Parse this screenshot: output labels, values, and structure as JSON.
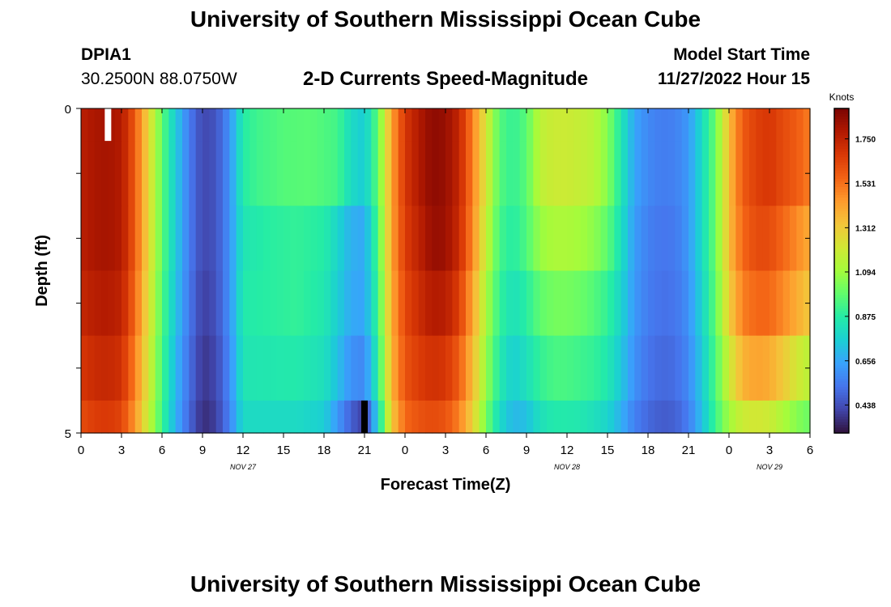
{
  "header": {
    "title": "University of Southern Mississippi Ocean Cube",
    "station": "DPIA1",
    "coords": "30.2500N  88.0750W",
    "subtitle": "2-D Currents Speed-Magnitude",
    "model_start_label": "Model Start Time",
    "model_start_value": "11/27/2022 Hour 15"
  },
  "footer": {
    "title": "University of Southern Mississippi Ocean Cube"
  },
  "chart_data": {
    "type": "heatmap",
    "xlabel": "Forecast Time(Z)",
    "ylabel": "Depth (ft)",
    "x_ticks": [
      "0",
      "3",
      "6",
      "9",
      "12",
      "15",
      "18",
      "21",
      "0",
      "3",
      "6",
      "9",
      "12",
      "15",
      "18",
      "21",
      "0",
      "3",
      "6"
    ],
    "date_labels": [
      {
        "label": "NOV 27",
        "hours": 12
      },
      {
        "label": "NOV 28",
        "hours": 36
      },
      {
        "label": "NOV 29",
        "hours": 51
      }
    ],
    "xlim": [
      0,
      54
    ],
    "y_ticks": [
      "0",
      "5"
    ],
    "ylim": [
      0,
      5
    ],
    "depth_layers": 5,
    "colorbar": {
      "unit": "Knots",
      "range": [
        0.3,
        1.9
      ],
      "ticks": [
        "1.750",
        "1.531",
        "1.312",
        "1.094",
        "0.875",
        "0.656",
        "0.438"
      ],
      "colors": [
        "#30123b",
        "#4145ab",
        "#4675ed",
        "#39a2fc",
        "#1bcfd4",
        "#24eca6",
        "#61fc6c",
        "#a4fc3b",
        "#d1e834",
        "#f3c63a",
        "#fe9b2d",
        "#f36315",
        "#d93806",
        "#b11901",
        "#7a0403"
      ]
    },
    "layer_profiles": [
      [
        [
          0,
          1.76
        ],
        [
          1,
          1.8
        ],
        [
          2,
          1.81
        ],
        [
          3,
          1.78
        ],
        [
          4,
          1.58
        ],
        [
          5,
          1.28
        ],
        [
          6,
          0.98
        ],
        [
          7,
          0.75
        ],
        [
          8,
          0.55
        ],
        [
          9,
          0.42
        ],
        [
          10,
          0.45
        ],
        [
          11,
          0.6
        ],
        [
          12,
          0.87
        ],
        [
          13,
          0.92
        ],
        [
          15,
          0.96
        ],
        [
          17,
          0.97
        ],
        [
          19,
          0.93
        ],
        [
          20,
          0.8
        ],
        [
          21,
          0.75
        ],
        [
          22,
          0.98
        ],
        [
          23,
          1.42
        ],
        [
          24,
          1.68
        ],
        [
          25,
          1.78
        ],
        [
          26,
          1.86
        ],
        [
          27,
          1.84
        ],
        [
          28,
          1.74
        ],
        [
          29,
          1.5
        ],
        [
          30,
          1.22
        ],
        [
          31,
          0.96
        ],
        [
          32,
          0.9
        ],
        [
          33,
          0.97
        ],
        [
          34,
          1.16
        ],
        [
          35,
          1.2
        ],
        [
          36,
          1.2
        ],
        [
          37,
          1.18
        ],
        [
          38,
          1.15
        ],
        [
          39,
          1.05
        ],
        [
          40,
          0.85
        ],
        [
          41,
          0.65
        ],
        [
          42,
          0.58
        ],
        [
          43,
          0.55
        ],
        [
          44,
          0.56
        ],
        [
          45,
          0.62
        ],
        [
          46,
          0.8
        ],
        [
          47,
          1.0
        ],
        [
          48,
          1.35
        ],
        [
          49,
          1.58
        ],
        [
          50,
          1.65
        ],
        [
          51,
          1.68
        ],
        [
          52,
          1.62
        ],
        [
          53,
          1.58
        ],
        [
          54,
          1.5
        ]
      ],
      [
        [
          0,
          1.76
        ],
        [
          1,
          1.8
        ],
        [
          2,
          1.81
        ],
        [
          3,
          1.78
        ],
        [
          4,
          1.58
        ],
        [
          5,
          1.28
        ],
        [
          6,
          0.98
        ],
        [
          7,
          0.75
        ],
        [
          8,
          0.55
        ],
        [
          9,
          0.42
        ],
        [
          10,
          0.45
        ],
        [
          11,
          0.6
        ],
        [
          12,
          0.84
        ],
        [
          14,
          0.88
        ],
        [
          16,
          0.9
        ],
        [
          18,
          0.87
        ],
        [
          19,
          0.78
        ],
        [
          20,
          0.68
        ],
        [
          21,
          0.66
        ],
        [
          22,
          0.95
        ],
        [
          23,
          1.42
        ],
        [
          24,
          1.66
        ],
        [
          25,
          1.75
        ],
        [
          26,
          1.84
        ],
        [
          27,
          1.83
        ],
        [
          28,
          1.72
        ],
        [
          29,
          1.48
        ],
        [
          30,
          1.18
        ],
        [
          31,
          0.93
        ],
        [
          32,
          0.87
        ],
        [
          33,
          0.95
        ],
        [
          34,
          1.08
        ],
        [
          35,
          1.12
        ],
        [
          36,
          1.12
        ],
        [
          37,
          1.1
        ],
        [
          38,
          1.06
        ],
        [
          39,
          0.98
        ],
        [
          40,
          0.82
        ],
        [
          41,
          0.63
        ],
        [
          42,
          0.56
        ],
        [
          43,
          0.53
        ],
        [
          44,
          0.54
        ],
        [
          45,
          0.62
        ],
        [
          46,
          0.8
        ],
        [
          47,
          1.0
        ],
        [
          48,
          1.35
        ],
        [
          49,
          1.55
        ],
        [
          50,
          1.62
        ],
        [
          51,
          1.62
        ],
        [
          52,
          1.55
        ],
        [
          53,
          1.48
        ],
        [
          54,
          1.4
        ]
      ],
      [
        [
          0,
          1.73
        ],
        [
          1,
          1.77
        ],
        [
          2,
          1.78
        ],
        [
          3,
          1.75
        ],
        [
          4,
          1.55
        ],
        [
          5,
          1.25
        ],
        [
          6,
          0.96
        ],
        [
          7,
          0.73
        ],
        [
          8,
          0.54
        ],
        [
          9,
          0.4
        ],
        [
          10,
          0.44
        ],
        [
          11,
          0.6
        ],
        [
          12,
          0.86
        ],
        [
          14,
          0.88
        ],
        [
          16,
          0.9
        ],
        [
          18,
          0.85
        ],
        [
          19,
          0.76
        ],
        [
          20,
          0.66
        ],
        [
          21,
          0.65
        ],
        [
          22,
          0.92
        ],
        [
          23,
          1.4
        ],
        [
          24,
          1.63
        ],
        [
          25,
          1.71
        ],
        [
          26,
          1.78
        ],
        [
          27,
          1.77
        ],
        [
          28,
          1.66
        ],
        [
          29,
          1.42
        ],
        [
          30,
          1.12
        ],
        [
          31,
          0.9
        ],
        [
          32,
          0.82
        ],
        [
          33,
          0.88
        ],
        [
          34,
          0.98
        ],
        [
          35,
          1.02
        ],
        [
          36,
          1.02
        ],
        [
          37,
          1.0
        ],
        [
          38,
          0.96
        ],
        [
          39,
          0.9
        ],
        [
          40,
          0.78
        ],
        [
          41,
          0.62
        ],
        [
          42,
          0.55
        ],
        [
          43,
          0.52
        ],
        [
          44,
          0.53
        ],
        [
          45,
          0.6
        ],
        [
          46,
          0.78
        ],
        [
          47,
          0.98
        ],
        [
          48,
          1.3
        ],
        [
          49,
          1.5
        ],
        [
          50,
          1.55
        ],
        [
          51,
          1.55
        ],
        [
          52,
          1.48
        ],
        [
          53,
          1.4
        ],
        [
          54,
          1.32
        ]
      ],
      [
        [
          0,
          1.68
        ],
        [
          1,
          1.72
        ],
        [
          2,
          1.73
        ],
        [
          3,
          1.7
        ],
        [
          4,
          1.5
        ],
        [
          5,
          1.22
        ],
        [
          6,
          0.94
        ],
        [
          7,
          0.7
        ],
        [
          8,
          0.52
        ],
        [
          9,
          0.38
        ],
        [
          10,
          0.42
        ],
        [
          11,
          0.58
        ],
        [
          12,
          0.84
        ],
        [
          14,
          0.85
        ],
        [
          16,
          0.86
        ],
        [
          18,
          0.82
        ],
        [
          19,
          0.72
        ],
        [
          20,
          0.6
        ],
        [
          21,
          0.58
        ],
        [
          22,
          0.88
        ],
        [
          23,
          1.38
        ],
        [
          24,
          1.6
        ],
        [
          25,
          1.66
        ],
        [
          26,
          1.7
        ],
        [
          27,
          1.68
        ],
        [
          28,
          1.58
        ],
        [
          29,
          1.36
        ],
        [
          30,
          1.08
        ],
        [
          31,
          0.86
        ],
        [
          32,
          0.76
        ],
        [
          33,
          0.82
        ],
        [
          34,
          0.9
        ],
        [
          35,
          0.94
        ],
        [
          36,
          0.94
        ],
        [
          37,
          0.92
        ],
        [
          38,
          0.9
        ],
        [
          39,
          0.85
        ],
        [
          40,
          0.74
        ],
        [
          41,
          0.6
        ],
        [
          42,
          0.53
        ],
        [
          43,
          0.5
        ],
        [
          44,
          0.51
        ],
        [
          45,
          0.58
        ],
        [
          46,
          0.75
        ],
        [
          47,
          0.95
        ],
        [
          48,
          1.2
        ],
        [
          49,
          1.38
        ],
        [
          50,
          1.42
        ],
        [
          51,
          1.4
        ],
        [
          52,
          1.32
        ],
        [
          53,
          1.22
        ],
        [
          54,
          1.15
        ]
      ],
      [
        [
          0,
          1.62
        ],
        [
          1,
          1.66
        ],
        [
          2,
          1.67
        ],
        [
          3,
          1.64
        ],
        [
          4,
          1.45
        ],
        [
          5,
          1.18
        ],
        [
          6,
          0.92
        ],
        [
          7,
          0.68
        ],
        [
          8,
          0.5
        ],
        [
          9,
          0.36
        ],
        [
          10,
          0.4
        ],
        [
          11,
          0.56
        ],
        [
          12,
          0.8
        ],
        [
          14,
          0.8
        ],
        [
          16,
          0.8
        ],
        [
          18,
          0.76
        ],
        [
          19,
          0.62
        ],
        [
          20,
          0.48
        ],
        [
          21,
          0.4
        ],
        [
          22,
          0.78
        ],
        [
          23,
          1.32
        ],
        [
          24,
          1.55
        ],
        [
          25,
          1.6
        ],
        [
          26,
          1.62
        ],
        [
          27,
          1.6
        ],
        [
          28,
          1.5
        ],
        [
          29,
          1.3
        ],
        [
          30,
          1.02
        ],
        [
          31,
          0.8
        ],
        [
          32,
          0.7
        ],
        [
          33,
          0.72
        ],
        [
          34,
          0.82
        ],
        [
          35,
          0.86
        ],
        [
          36,
          0.86
        ],
        [
          37,
          0.85
        ],
        [
          38,
          0.82
        ],
        [
          39,
          0.78
        ],
        [
          40,
          0.68
        ],
        [
          41,
          0.56
        ],
        [
          42,
          0.5
        ],
        [
          43,
          0.47
        ],
        [
          44,
          0.48
        ],
        [
          45,
          0.55
        ],
        [
          46,
          0.72
        ],
        [
          47,
          0.92
        ],
        [
          48,
          1.1
        ],
        [
          49,
          1.2
        ],
        [
          50,
          1.22
        ],
        [
          51,
          1.2
        ],
        [
          52,
          1.12
        ],
        [
          53,
          1.05
        ],
        [
          54,
          1.0
        ]
      ]
    ],
    "markers": [
      {
        "hours": 2,
        "depth_from": 0,
        "depth_to": 0.5,
        "color": "#ffffff"
      },
      {
        "hours": 21,
        "depth_from": 4.5,
        "depth_to": 5,
        "color": "#000000"
      }
    ]
  }
}
